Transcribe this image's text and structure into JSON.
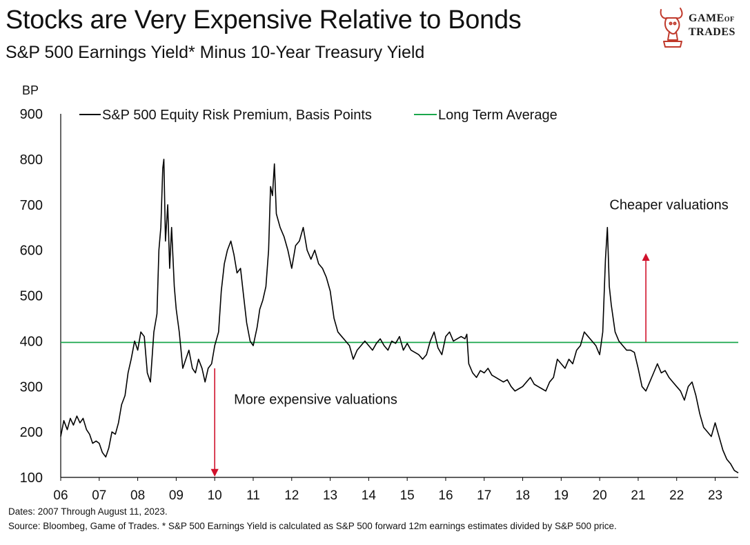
{
  "header": {
    "title": "Stocks are Very Expensive Relative to Bonds",
    "subtitle": "S&P 500 Earnings Yield* Minus 10-Year Treasury Yield"
  },
  "logo": {
    "line1": "Game",
    "line1_small": "of",
    "line2": "Trades",
    "icon": "bull-icon",
    "color": "#c0392b"
  },
  "footer": {
    "dates": "Dates: 2007 Through August 11, 2023.",
    "source": "Source: Bloombeg, Game of Trades. * S&P 500 Earnings Yield is calculated as S&P 500 forward 12m earnings estimates divided by S&P 500 price."
  },
  "chart_data": {
    "type": "line",
    "ylabel": "BP",
    "ylim": [
      100,
      900
    ],
    "xlim": [
      2006,
      2023.6
    ],
    "y_ticks": [
      100,
      200,
      300,
      400,
      500,
      600,
      700,
      800,
      900
    ],
    "x_ticks": [
      {
        "v": 2006,
        "label": "06"
      },
      {
        "v": 2007,
        "label": "07"
      },
      {
        "v": 2008,
        "label": "08"
      },
      {
        "v": 2009,
        "label": "09"
      },
      {
        "v": 2010,
        "label": "10"
      },
      {
        "v": 2011,
        "label": "11"
      },
      {
        "v": 2012,
        "label": "12"
      },
      {
        "v": 2013,
        "label": "13"
      },
      {
        "v": 2014,
        "label": "14"
      },
      {
        "v": 2015,
        "label": "15"
      },
      {
        "v": 2016,
        "label": "16"
      },
      {
        "v": 2017,
        "label": "17"
      },
      {
        "v": 2018,
        "label": "18"
      },
      {
        "v": 2019,
        "label": "19"
      },
      {
        "v": 2020,
        "label": "20"
      },
      {
        "v": 2021,
        "label": "21"
      },
      {
        "v": 2022,
        "label": "22"
      },
      {
        "v": 2023,
        "label": "23"
      }
    ],
    "grid": false,
    "legend_position": "top",
    "series": [
      {
        "name": "S&P 500 Equity Risk Premium, Basis Points",
        "color": "#000000",
        "points": [
          [
            2006.0,
            190
          ],
          [
            2006.08,
            225
          ],
          [
            2006.17,
            205
          ],
          [
            2006.25,
            230
          ],
          [
            2006.33,
            215
          ],
          [
            2006.42,
            235
          ],
          [
            2006.5,
            220
          ],
          [
            2006.58,
            230
          ],
          [
            2006.67,
            205
          ],
          [
            2006.75,
            195
          ],
          [
            2006.83,
            175
          ],
          [
            2006.92,
            180
          ],
          [
            2007.0,
            175
          ],
          [
            2007.08,
            155
          ],
          [
            2007.17,
            145
          ],
          [
            2007.25,
            165
          ],
          [
            2007.33,
            200
          ],
          [
            2007.42,
            195
          ],
          [
            2007.5,
            220
          ],
          [
            2007.58,
            260
          ],
          [
            2007.67,
            280
          ],
          [
            2007.75,
            330
          ],
          [
            2007.83,
            360
          ],
          [
            2007.92,
            400
          ],
          [
            2008.0,
            380
          ],
          [
            2008.08,
            420
          ],
          [
            2008.17,
            410
          ],
          [
            2008.25,
            330
          ],
          [
            2008.33,
            310
          ],
          [
            2008.42,
            420
          ],
          [
            2008.5,
            460
          ],
          [
            2008.55,
            600
          ],
          [
            2008.6,
            650
          ],
          [
            2008.65,
            780
          ],
          [
            2008.68,
            800
          ],
          [
            2008.72,
            620
          ],
          [
            2008.78,
            700
          ],
          [
            2008.83,
            560
          ],
          [
            2008.88,
            650
          ],
          [
            2008.95,
            520
          ],
          [
            2009.0,
            470
          ],
          [
            2009.08,
            420
          ],
          [
            2009.17,
            340
          ],
          [
            2009.25,
            360
          ],
          [
            2009.33,
            380
          ],
          [
            2009.42,
            340
          ],
          [
            2009.5,
            330
          ],
          [
            2009.58,
            360
          ],
          [
            2009.67,
            340
          ],
          [
            2009.75,
            310
          ],
          [
            2009.83,
            340
          ],
          [
            2009.92,
            350
          ],
          [
            2010.0,
            390
          ],
          [
            2010.1,
            420
          ],
          [
            2010.17,
            510
          ],
          [
            2010.25,
            570
          ],
          [
            2010.33,
            600
          ],
          [
            2010.42,
            620
          ],
          [
            2010.5,
            590
          ],
          [
            2010.58,
            550
          ],
          [
            2010.67,
            560
          ],
          [
            2010.75,
            500
          ],
          [
            2010.83,
            440
          ],
          [
            2010.92,
            400
          ],
          [
            2011.0,
            390
          ],
          [
            2011.1,
            430
          ],
          [
            2011.17,
            470
          ],
          [
            2011.25,
            490
          ],
          [
            2011.33,
            520
          ],
          [
            2011.4,
            600
          ],
          [
            2011.45,
            740
          ],
          [
            2011.5,
            720
          ],
          [
            2011.55,
            790
          ],
          [
            2011.6,
            680
          ],
          [
            2011.7,
            650
          ],
          [
            2011.8,
            630
          ],
          [
            2011.9,
            600
          ],
          [
            2012.0,
            560
          ],
          [
            2012.1,
            610
          ],
          [
            2012.2,
            620
          ],
          [
            2012.3,
            650
          ],
          [
            2012.4,
            600
          ],
          [
            2012.5,
            580
          ],
          [
            2012.6,
            600
          ],
          [
            2012.7,
            570
          ],
          [
            2012.8,
            560
          ],
          [
            2012.9,
            540
          ],
          [
            2013.0,
            510
          ],
          [
            2013.1,
            450
          ],
          [
            2013.2,
            420
          ],
          [
            2013.3,
            410
          ],
          [
            2013.4,
            400
          ],
          [
            2013.5,
            390
          ],
          [
            2013.6,
            360
          ],
          [
            2013.7,
            380
          ],
          [
            2013.8,
            390
          ],
          [
            2013.9,
            400
          ],
          [
            2014.0,
            390
          ],
          [
            2014.1,
            380
          ],
          [
            2014.2,
            395
          ],
          [
            2014.3,
            405
          ],
          [
            2014.4,
            390
          ],
          [
            2014.5,
            380
          ],
          [
            2014.6,
            400
          ],
          [
            2014.7,
            395
          ],
          [
            2014.8,
            410
          ],
          [
            2014.9,
            380
          ],
          [
            2015.0,
            395
          ],
          [
            2015.1,
            380
          ],
          [
            2015.2,
            375
          ],
          [
            2015.3,
            370
          ],
          [
            2015.4,
            360
          ],
          [
            2015.5,
            370
          ],
          [
            2015.6,
            400
          ],
          [
            2015.7,
            420
          ],
          [
            2015.8,
            385
          ],
          [
            2015.9,
            370
          ],
          [
            2016.0,
            410
          ],
          [
            2016.1,
            420
          ],
          [
            2016.2,
            400
          ],
          [
            2016.3,
            405
          ],
          [
            2016.4,
            410
          ],
          [
            2016.5,
            405
          ],
          [
            2016.55,
            415
          ],
          [
            2016.6,
            350
          ],
          [
            2016.7,
            330
          ],
          [
            2016.8,
            320
          ],
          [
            2016.9,
            335
          ],
          [
            2017.0,
            330
          ],
          [
            2017.1,
            340
          ],
          [
            2017.2,
            325
          ],
          [
            2017.3,
            320
          ],
          [
            2017.4,
            315
          ],
          [
            2017.5,
            310
          ],
          [
            2017.6,
            315
          ],
          [
            2017.7,
            300
          ],
          [
            2017.8,
            290
          ],
          [
            2017.9,
            295
          ],
          [
            2018.0,
            300
          ],
          [
            2018.1,
            310
          ],
          [
            2018.2,
            320
          ],
          [
            2018.3,
            305
          ],
          [
            2018.4,
            300
          ],
          [
            2018.5,
            295
          ],
          [
            2018.6,
            290
          ],
          [
            2018.7,
            310
          ],
          [
            2018.8,
            320
          ],
          [
            2018.9,
            360
          ],
          [
            2019.0,
            350
          ],
          [
            2019.1,
            340
          ],
          [
            2019.2,
            360
          ],
          [
            2019.3,
            350
          ],
          [
            2019.4,
            380
          ],
          [
            2019.5,
            390
          ],
          [
            2019.6,
            420
          ],
          [
            2019.7,
            410
          ],
          [
            2019.8,
            400
          ],
          [
            2019.9,
            390
          ],
          [
            2019.95,
            380
          ],
          [
            2020.0,
            370
          ],
          [
            2020.08,
            420
          ],
          [
            2020.15,
            580
          ],
          [
            2020.2,
            650
          ],
          [
            2020.25,
            520
          ],
          [
            2020.3,
            480
          ],
          [
            2020.4,
            420
          ],
          [
            2020.5,
            400
          ],
          [
            2020.6,
            390
          ],
          [
            2020.7,
            380
          ],
          [
            2020.8,
            380
          ],
          [
            2020.9,
            375
          ],
          [
            2021.0,
            340
          ],
          [
            2021.1,
            300
          ],
          [
            2021.2,
            290
          ],
          [
            2021.3,
            310
          ],
          [
            2021.4,
            330
          ],
          [
            2021.5,
            350
          ],
          [
            2021.6,
            330
          ],
          [
            2021.7,
            335
          ],
          [
            2021.8,
            320
          ],
          [
            2021.9,
            310
          ],
          [
            2022.0,
            300
          ],
          [
            2022.1,
            290
          ],
          [
            2022.2,
            270
          ],
          [
            2022.3,
            300
          ],
          [
            2022.4,
            310
          ],
          [
            2022.5,
            280
          ],
          [
            2022.6,
            240
          ],
          [
            2022.7,
            210
          ],
          [
            2022.8,
            200
          ],
          [
            2022.9,
            190
          ],
          [
            2023.0,
            220
          ],
          [
            2023.1,
            190
          ],
          [
            2023.2,
            160
          ],
          [
            2023.3,
            140
          ],
          [
            2023.4,
            130
          ],
          [
            2023.5,
            115
          ],
          [
            2023.6,
            110
          ]
        ]
      },
      {
        "name": "Long Term Average",
        "color": "#1aa64b",
        "value": 397
      }
    ],
    "annotations": [
      {
        "text": "Cheaper valuations",
        "x": 2021.8,
        "y": 690,
        "arrow": {
          "from": [
            2021.2,
            398
          ],
          "to": [
            2021.2,
            590
          ]
        },
        "color": "#d0112b"
      },
      {
        "text": "More expensive valuations",
        "x": 2010.5,
        "y": 262,
        "arrow": {
          "from": [
            2010.0,
            340
          ],
          "to": [
            2010.0,
            105
          ]
        },
        "color": "#d0112b"
      }
    ]
  }
}
